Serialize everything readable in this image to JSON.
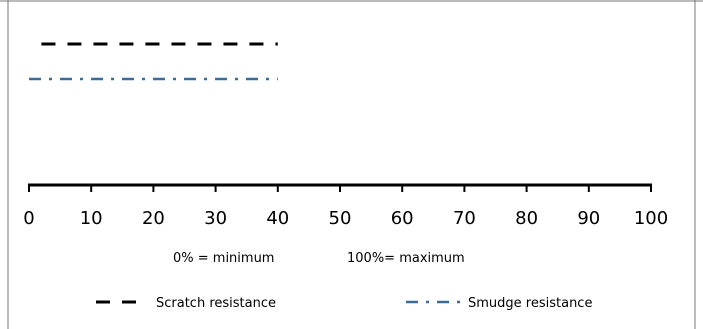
{
  "chart_data": {
    "type": "bar",
    "title": "",
    "xlabel": "",
    "ylabel": "",
    "xlim": [
      0,
      100
    ],
    "x_ticks": [
      "0",
      "10",
      "20",
      "30",
      "40",
      "50",
      "60",
      "70",
      "80",
      "90",
      "100"
    ],
    "grid": false,
    "series": [
      {
        "name": "Scratch resistance",
        "start": 2,
        "end": 40,
        "line_style": "dashed",
        "color": "#000000"
      },
      {
        "name": "Smudge resistance",
        "start": 0,
        "end": 40,
        "line_style": "dash-dot",
        "color": "#3a6b99"
      }
    ],
    "annotations": [
      "0% = minimum",
      "100%= maximum"
    ],
    "legend_position": "bottom"
  }
}
